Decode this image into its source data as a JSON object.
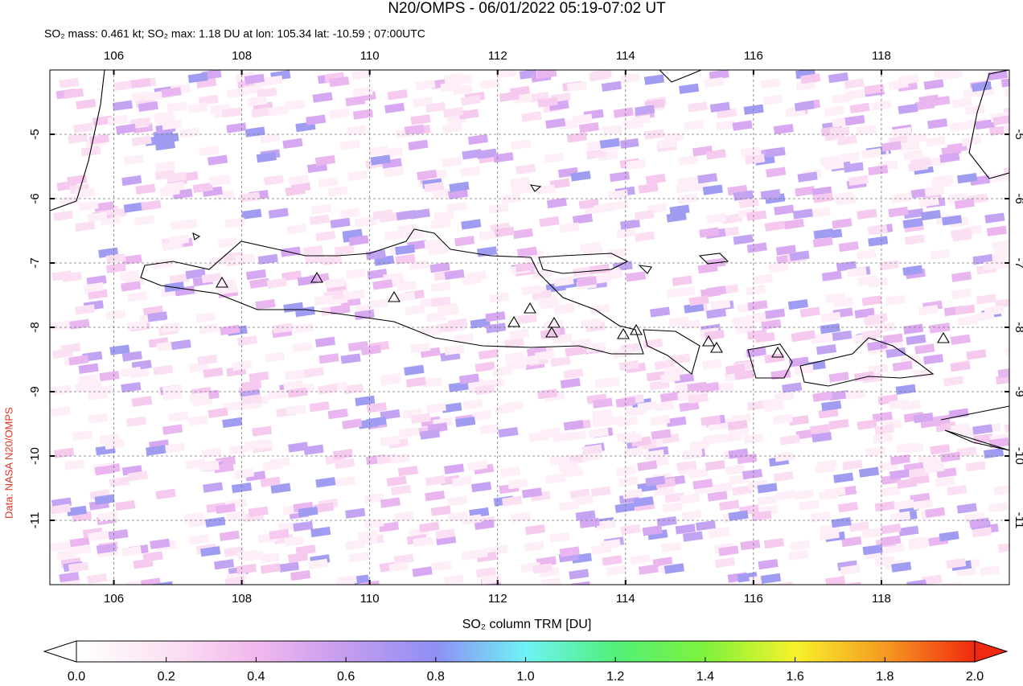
{
  "title": "N20/OMPS - 06/01/2022 05:19-07:02 UT",
  "subtitle": "SO₂ mass: 0.461 kt; SO₂ max: 1.18 DU at lon: 105.34 lat: -10.59 ; 07:00UTC",
  "credit": "Data: NASA N20/OMPS",
  "map": {
    "lonlim": [
      105,
      120
    ],
    "latlim": [
      -12,
      -4
    ],
    "lonticks": [
      106,
      108,
      110,
      112,
      114,
      116,
      118
    ],
    "latticks": [
      -5,
      -6,
      -7,
      -8,
      -9,
      -10,
      -11
    ],
    "grid": true
  },
  "colorbar": {
    "label": "SO₂ column TRM [DU]",
    "range": [
      0,
      2
    ],
    "ticks": [
      {
        "value": 0,
        "label": "0.0"
      },
      {
        "value": 0.2,
        "label": "0.2"
      },
      {
        "value": 0.4,
        "label": "0.4"
      },
      {
        "value": 0.6,
        "label": "0.6"
      },
      {
        "value": 0.8,
        "label": "0.8"
      },
      {
        "value": 1,
        "label": "1.0"
      },
      {
        "value": 1.2,
        "label": "1.2"
      },
      {
        "value": 1.4,
        "label": "1.4"
      },
      {
        "value": 1.6,
        "label": "1.6"
      },
      {
        "value": 1.8,
        "label": "1.8"
      },
      {
        "value": 2,
        "label": "2.0"
      }
    ]
  }
}
